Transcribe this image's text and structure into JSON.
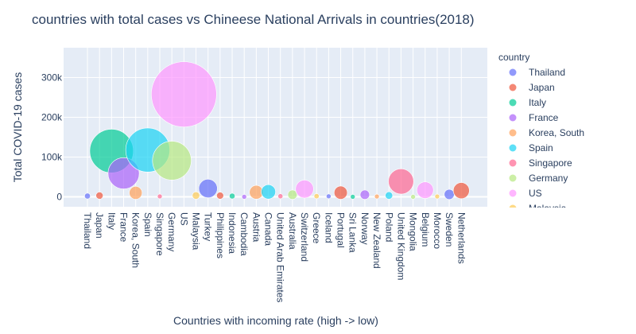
{
  "chart_data": {
    "type": "scatter",
    "title": "countries with total cases vs Chineese National Arrivals in countries(2018)",
    "xlabel": "Countries with incoming rate (high -> low)",
    "ylabel": "Total COVID-19 cases",
    "ylim": [
      -25000,
      375000
    ],
    "yticks": [
      0,
      100000,
      200000,
      300000
    ],
    "ytick_labels": [
      "0",
      "100k",
      "200k",
      "300k"
    ],
    "grid": true,
    "legend_title": "country",
    "legend_position": "right",
    "categories": [
      "Thailand",
      "Japan",
      "Italy",
      "France",
      "Korea, South",
      "Spain",
      "Singapore",
      "Germany",
      "US",
      "Malaysia",
      "Turkey",
      "Philippines",
      "Indonesia",
      "Cambodia",
      "Austria",
      "Canada",
      "United Arab Emirates",
      "Australia",
      "Switzerland",
      "Greece",
      "Iceland",
      "Portugal",
      "Sri Lanka",
      "Norway",
      "New Zealand",
      "Poland",
      "United Kingdom",
      "Mongolia",
      "Belgium",
      "Morocco",
      "Sweden",
      "Netherlands"
    ],
    "series": [
      {
        "name": "Thailand",
        "color": "#636efa",
        "y": 2067
      },
      {
        "name": "Japan",
        "color": "#EF553B",
        "y": 3139
      },
      {
        "name": "Italy",
        "color": "#00cc96",
        "y": 115242
      },
      {
        "name": "France",
        "color": "#ab63fa",
        "y": 59105
      },
      {
        "name": "Korea, South",
        "color": "#FFA15A",
        "y": 10062
      },
      {
        "name": "Spain",
        "color": "#19d3f3",
        "y": 117710
      },
      {
        "name": "Singapore",
        "color": "#FF6692",
        "y": 1114
      },
      {
        "name": "Germany",
        "color": "#B6E880",
        "y": 91159
      },
      {
        "name": "US",
        "color": "#FF97FF",
        "y": 257773
      },
      {
        "name": "Malaysia",
        "color": "#FECB52",
        "y": 3333
      },
      {
        "name": "Turkey",
        "color": "#636efa",
        "y": 20921
      },
      {
        "name": "Philippines",
        "color": "#EF553B",
        "y": 3018
      },
      {
        "name": "Indonesia",
        "color": "#00cc96",
        "y": 1986
      },
      {
        "name": "Cambodia",
        "color": "#ab63fa",
        "y": 114
      },
      {
        "name": "Austria",
        "color": "#FFA15A",
        "y": 11524
      },
      {
        "name": "Canada",
        "color": "#19d3f3",
        "y": 12549
      },
      {
        "name": "United Arab Emirates",
        "color": "#FF6692",
        "y": 1505
      },
      {
        "name": "Australia",
        "color": "#B6E880",
        "y": 5330
      },
      {
        "name": "Switzerland",
        "color": "#FF97FF",
        "y": 19606
      },
      {
        "name": "Greece",
        "color": "#FECB52",
        "y": 1613
      },
      {
        "name": "Iceland",
        "color": "#636efa",
        "y": 1319
      },
      {
        "name": "Portugal",
        "color": "#EF553B",
        "y": 10524
      },
      {
        "name": "Sri Lanka",
        "color": "#00cc96",
        "y": 159
      },
      {
        "name": "Norway",
        "color": "#ab63fa",
        "y": 5370
      },
      {
        "name": "New Zealand",
        "color": "#FFA15A",
        "y": 868
      },
      {
        "name": "Poland",
        "color": "#19d3f3",
        "y": 3383
      },
      {
        "name": "United Kingdom",
        "color": "#FF6692",
        "y": 38689
      },
      {
        "name": "Mongolia",
        "color": "#B6E880",
        "y": 14
      },
      {
        "name": "Belgium",
        "color": "#FF97FF",
        "y": 16770
      },
      {
        "name": "Morocco",
        "color": "#FECB52",
        "y": 919
      },
      {
        "name": "Sweden",
        "color": "#636efa",
        "y": 6131
      },
      {
        "name": "Netherlands",
        "color": "#EF553B",
        "y": 15723
      }
    ],
    "legend_visible": [
      "Thailand",
      "Japan",
      "Italy",
      "France",
      "Korea, South",
      "Spain",
      "Singapore",
      "Germany",
      "US",
      "Malaysia"
    ]
  }
}
